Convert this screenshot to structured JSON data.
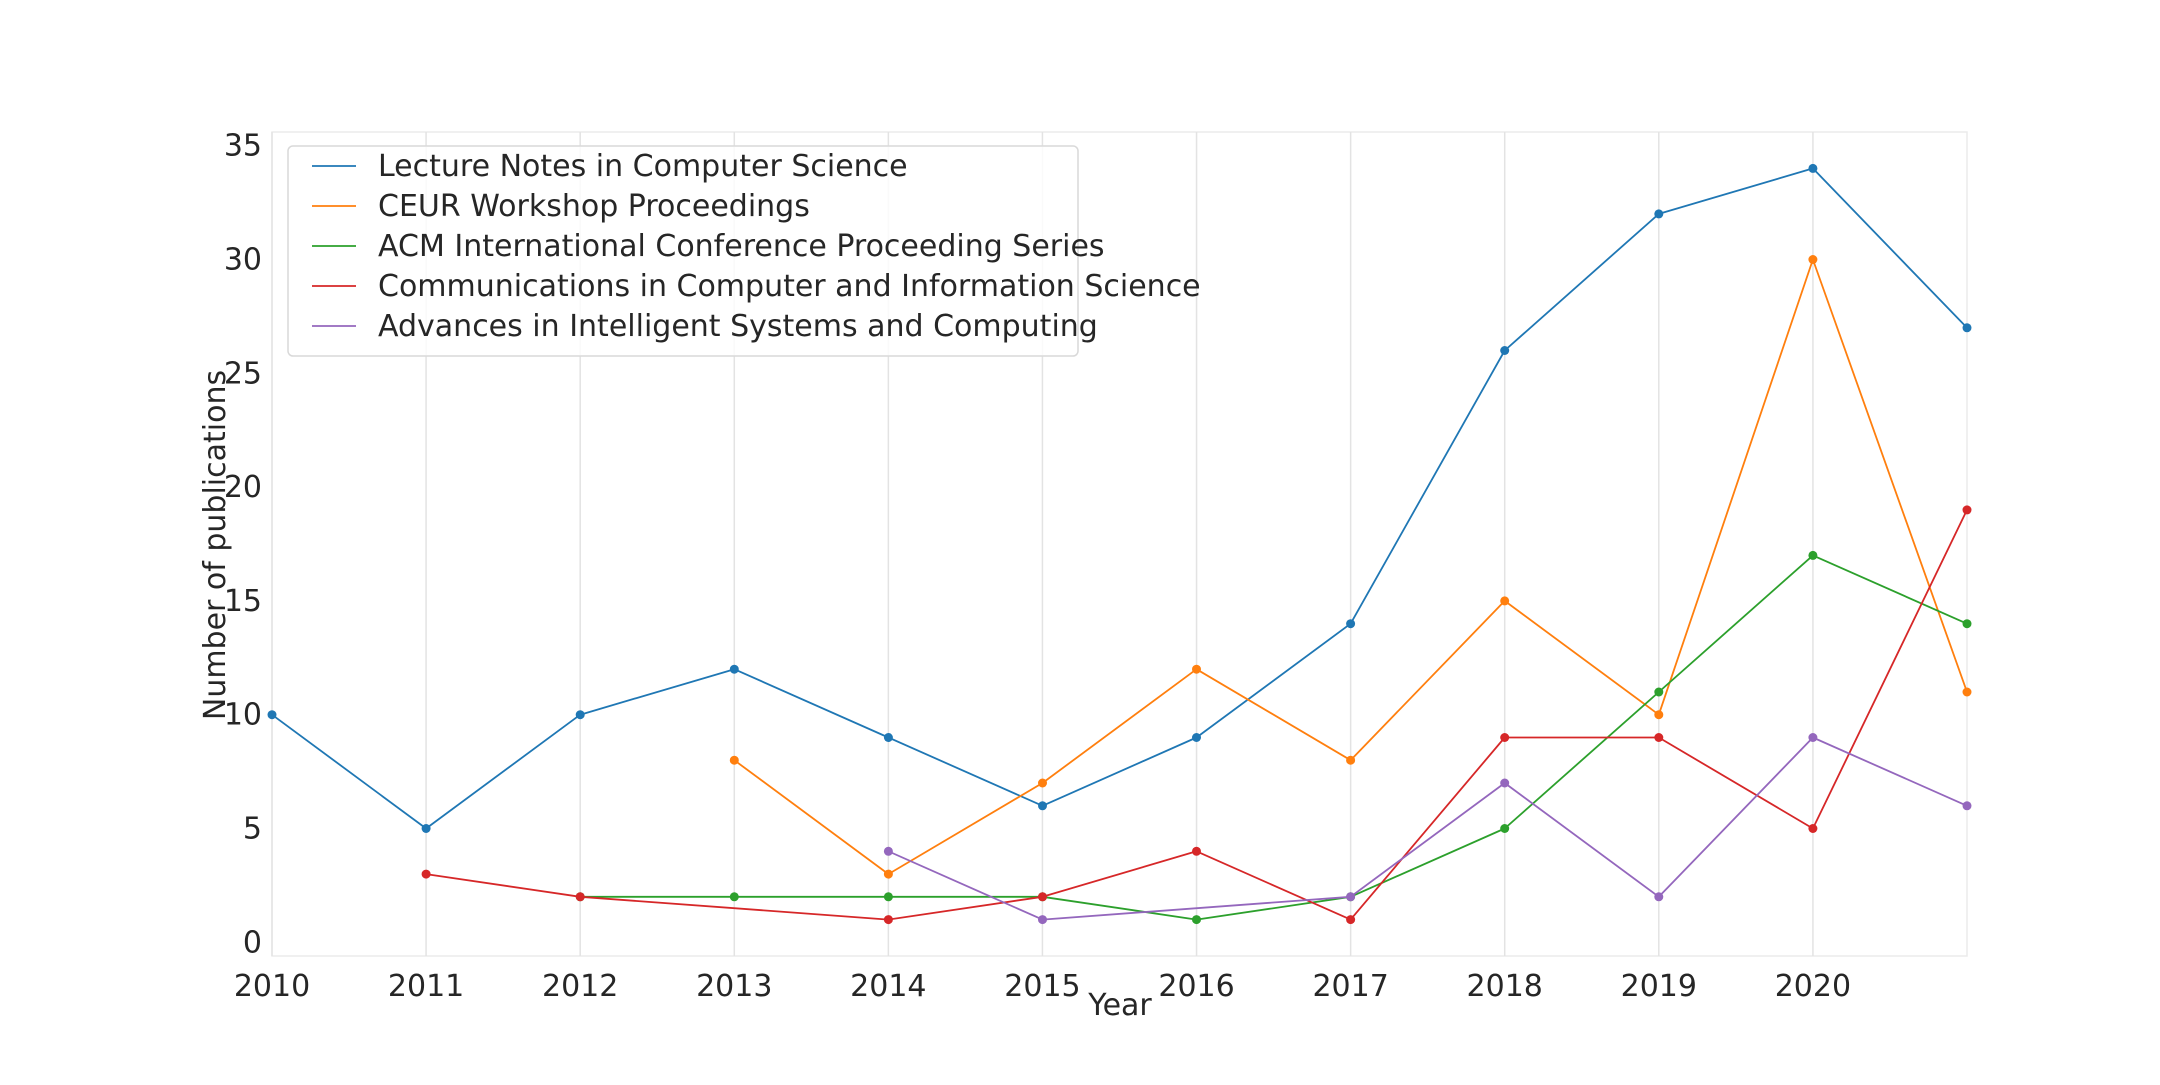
{
  "chart_data": {
    "type": "line",
    "title": "",
    "xlabel": "Year",
    "ylabel": "Number of publications",
    "x": [
      2010,
      2011,
      2012,
      2013,
      2014,
      2015,
      2016,
      2017,
      2018,
      2019,
      2020,
      2021
    ],
    "xticks": [
      "2010",
      "2011",
      "2012",
      "2013",
      "2014",
      "2015",
      "2016",
      "2017",
      "2018",
      "2019",
      "2020"
    ],
    "yticks": [
      "0",
      "5",
      "10",
      "15",
      "20",
      "25",
      "30",
      "35"
    ],
    "xlim": [
      2010,
      2021
    ],
    "ylim": [
      -0.6,
      35.6
    ],
    "grid": "vertical",
    "legend_position": "top-left",
    "series": [
      {
        "name": "Lecture Notes in Computer Science",
        "color": "#1f77b4",
        "values": [
          10,
          5,
          10,
          12,
          9,
          6,
          9,
          14,
          26,
          32,
          34,
          27
        ]
      },
      {
        "name": "CEUR Workshop Proceedings",
        "color": "#ff7f0e",
        "values": [
          null,
          null,
          null,
          8,
          3,
          7,
          12,
          8,
          15,
          10,
          30,
          11
        ]
      },
      {
        "name": "ACM International Conference Proceeding Series",
        "color": "#2ca02c",
        "values": [
          null,
          null,
          2,
          2,
          2,
          2,
          1,
          2,
          5,
          11,
          17,
          14
        ]
      },
      {
        "name": "Communications in Computer and Information Science",
        "color": "#d62728",
        "values": [
          null,
          3,
          2,
          null,
          1,
          2,
          4,
          1,
          9,
          9,
          5,
          19
        ]
      },
      {
        "name": "Advances in Intelligent Systems and Computing",
        "color": "#9467bd",
        "values": [
          null,
          null,
          null,
          null,
          4,
          1,
          null,
          2,
          7,
          2,
          9,
          6
        ]
      }
    ]
  }
}
